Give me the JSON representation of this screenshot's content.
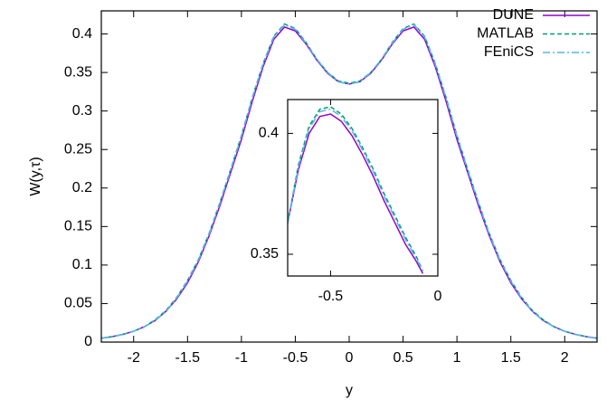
{
  "chart_data": [
    {
      "type": "line",
      "xlabel": "y",
      "ylabel": "W(y,τ)",
      "legend": "upper right",
      "x": [
        -2.3,
        -2.2,
        -2.1,
        -2.0,
        -1.9,
        -1.8,
        -1.7,
        -1.6,
        -1.5,
        -1.4,
        -1.3,
        -1.2,
        -1.1,
        -1.0,
        -0.9,
        -0.8,
        -0.7,
        -0.6,
        -0.5,
        -0.4,
        -0.3,
        -0.2,
        -0.1,
        0,
        0.1,
        0.2,
        0.3,
        0.4,
        0.5,
        0.6,
        0.7,
        0.8,
        0.9,
        1.0,
        1.1,
        1.2,
        1.3,
        1.4,
        1.5,
        1.6,
        1.7,
        1.8,
        1.9,
        2.0,
        2.1,
        2.2,
        2.3
      ],
      "series": [
        {
          "name": "DUNE",
          "color": "#9400d3",
          "dash": "solid",
          "values": [
            0.005,
            0.007,
            0.01,
            0.014,
            0.02,
            0.028,
            0.04,
            0.056,
            0.077,
            0.104,
            0.138,
            0.177,
            0.22,
            0.263,
            0.312,
            0.357,
            0.393,
            0.409,
            0.404,
            0.387,
            0.366,
            0.349,
            0.338,
            0.335,
            0.338,
            0.349,
            0.366,
            0.387,
            0.404,
            0.409,
            0.393,
            0.357,
            0.312,
            0.263,
            0.22,
            0.177,
            0.138,
            0.104,
            0.077,
            0.056,
            0.04,
            0.028,
            0.02,
            0.014,
            0.01,
            0.007,
            0.005
          ]
        },
        {
          "name": "MATLAB",
          "color": "#009e73",
          "dash": "dashed",
          "values": [
            0.005,
            0.007,
            0.01,
            0.014,
            0.02,
            0.029,
            0.041,
            0.058,
            0.08,
            0.107,
            0.141,
            0.181,
            0.224,
            0.268,
            0.317,
            0.361,
            0.397,
            0.413,
            0.407,
            0.389,
            0.367,
            0.35,
            0.339,
            0.336,
            0.339,
            0.35,
            0.367,
            0.389,
            0.407,
            0.413,
            0.397,
            0.361,
            0.317,
            0.268,
            0.224,
            0.181,
            0.141,
            0.107,
            0.08,
            0.058,
            0.041,
            0.029,
            0.02,
            0.014,
            0.01,
            0.007,
            0.005
          ]
        },
        {
          "name": "FEniCS",
          "color": "#56b4e9",
          "dash": "dashdot",
          "values": [
            0.005,
            0.007,
            0.01,
            0.014,
            0.02,
            0.028,
            0.04,
            0.057,
            0.079,
            0.106,
            0.14,
            0.18,
            0.223,
            0.267,
            0.316,
            0.36,
            0.396,
            0.412,
            0.406,
            0.388,
            0.367,
            0.35,
            0.338,
            0.335,
            0.338,
            0.35,
            0.367,
            0.388,
            0.406,
            0.412,
            0.396,
            0.36,
            0.316,
            0.267,
            0.223,
            0.18,
            0.14,
            0.106,
            0.079,
            0.057,
            0.04,
            0.028,
            0.02,
            0.014,
            0.01,
            0.007,
            0.005
          ]
        }
      ],
      "xlim": [
        -2.3,
        2.3
      ],
      "xticks": [
        -2,
        -1.5,
        -1,
        -0.5,
        0,
        0.5,
        1,
        1.5,
        2
      ],
      "ylim": [
        0,
        0.43
      ],
      "yticks": [
        0,
        0.05,
        0.1,
        0.15,
        0.2,
        0.25,
        0.3,
        0.35,
        0.4
      ]
    },
    {
      "type": "line",
      "x": [
        -0.7,
        -0.65,
        -0.6,
        -0.55,
        -0.5,
        -0.45,
        -0.4,
        -0.35,
        -0.3,
        -0.25,
        -0.2,
        -0.15,
        -0.1,
        -0.07
      ],
      "series": [
        {
          "color": "#9400d3",
          "dash": "solid",
          "values": [
            0.363,
            0.385,
            0.4,
            0.407,
            0.408,
            0.405,
            0.399,
            0.391,
            0.382,
            0.372,
            0.363,
            0.354,
            0.347,
            0.342
          ]
        },
        {
          "color": "#009e73",
          "dash": "dashed",
          "values": [
            0.363,
            0.387,
            0.403,
            0.41,
            0.411,
            0.408,
            0.402,
            0.394,
            0.385,
            0.375,
            0.366,
            0.357,
            0.349,
            0.343
          ]
        },
        {
          "color": "#56b4e9",
          "dash": "dashdot",
          "values": [
            0.363,
            0.386,
            0.402,
            0.409,
            0.41,
            0.407,
            0.401,
            0.393,
            0.384,
            0.374,
            0.365,
            0.356,
            0.348,
            0.343
          ]
        }
      ],
      "xlim": [
        -0.7,
        0
      ],
      "xticks": [
        -0.5,
        0
      ],
      "ylim": [
        0.341,
        0.414
      ],
      "yticks": [
        0.35,
        0.4
      ]
    }
  ]
}
